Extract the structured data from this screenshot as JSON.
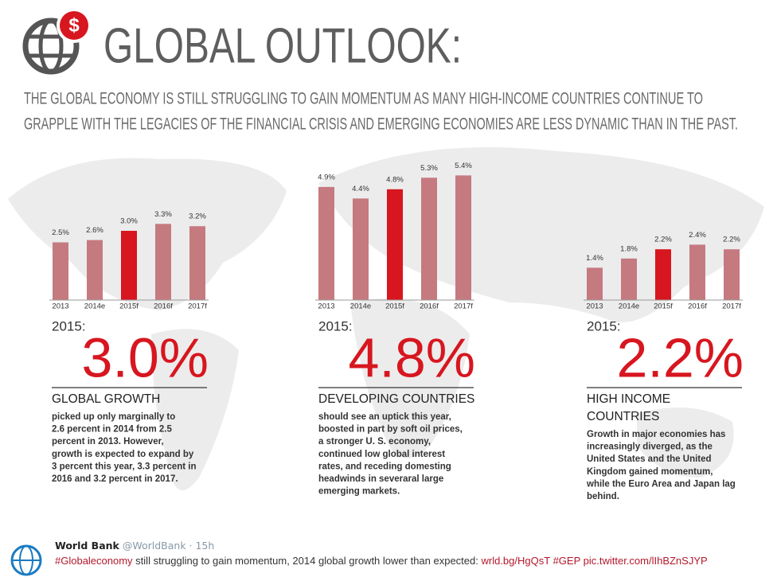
{
  "header": {
    "title": "GLOBAL OUTLOOK:",
    "subtitle": [
      "THE GLOBAL ECONOMY IS STILL STRUGGLING TO GAIN MOMENTUM AS MANY HIGH-INCOME COUNTRIES CONTINUE TO",
      "GRAPPLE WITH THE LEGACIES OF THE FINANCIAL CRISIS AND EMERGING ECONOMIES ARE LESS DYNAMIC THAN IN THE PAST."
    ]
  },
  "chart_data": [
    {
      "type": "bar",
      "categories": [
        "2013",
        "2014e",
        "2015f",
        "2016f",
        "2017f"
      ],
      "values": [
        2.5,
        2.6,
        3.0,
        3.3,
        3.2
      ],
      "value_labels": [
        "2.5%",
        "2.6%",
        "3.0%",
        "3.3%",
        "3.2%"
      ],
      "colors": [
        "#c57a80",
        "#c57a80",
        "#d7161f",
        "#c57a80",
        "#c57a80"
      ]
    },
    {
      "type": "bar",
      "categories": [
        "2013",
        "2014e",
        "2015f",
        "2016f",
        "2017f"
      ],
      "values": [
        4.9,
        4.4,
        4.8,
        5.3,
        5.4
      ],
      "value_labels": [
        "4.9%",
        "4.4%",
        "4.8%",
        "5.3%",
        "5.4%"
      ],
      "colors": [
        "#c57a80",
        "#c57a80",
        "#d7161f",
        "#c57a80",
        "#c57a80"
      ]
    },
    {
      "type": "bar",
      "categories": [
        "2013",
        "2014e",
        "2015f",
        "2016f",
        "2017f"
      ],
      "values": [
        1.4,
        1.8,
        2.2,
        2.4,
        2.2
      ],
      "value_labels": [
        "1.4%",
        "1.8%",
        "2.2%",
        "2.4%",
        "2.2%"
      ],
      "colors": [
        "#c57a80",
        "#c57a80",
        "#d7161f",
        "#c57a80",
        "#c57a80"
      ]
    }
  ],
  "panels": [
    {
      "year_label": "2015:",
      "big": "3.0%",
      "heading": [
        "GLOBAL GROWTH"
      ],
      "body": [
        "picked up only marginally to",
        "2.6 percent in 2014 from 2.5",
        "percent in 2013. However,",
        "growth is expected to expand by",
        "3 percent this year, 3.3 percent in",
        "2016 and 3.2 percent in 2017."
      ]
    },
    {
      "year_label": "2015:",
      "big": "4.8%",
      "heading": [
        "DEVELOPING COUNTRIES"
      ],
      "body": [
        "should see an uptick this year,",
        "boosted in part by soft oil prices,",
        "a stronger U. S. economy,",
        "continued low global interest",
        "rates, and receding domesting",
        "headwinds in severaral large",
        "emerging markets."
      ]
    },
    {
      "year_label": "2015:",
      "big": "2.2%",
      "heading": [
        "HIGH INCOME",
        "COUNTRIES"
      ],
      "body": [
        "Growth in major economies has",
        "increasingly diverged, as the",
        "United States and the United",
        "Kingdom gained momentum,",
        "while the Euro Area and Japan lag",
        "behind."
      ]
    }
  ],
  "tweet": {
    "name": "World Bank",
    "handle": "@WorldBank · 15h",
    "hashtag": "#Globaleconomy",
    "text": " still struggling to gain momentum, 2014 global growth lower than expected: ",
    "link": "wrld.bg/HgQsT",
    "tag": " #GEP",
    "pic": " pic.twitter.com/lIhBZnSJYP"
  }
}
